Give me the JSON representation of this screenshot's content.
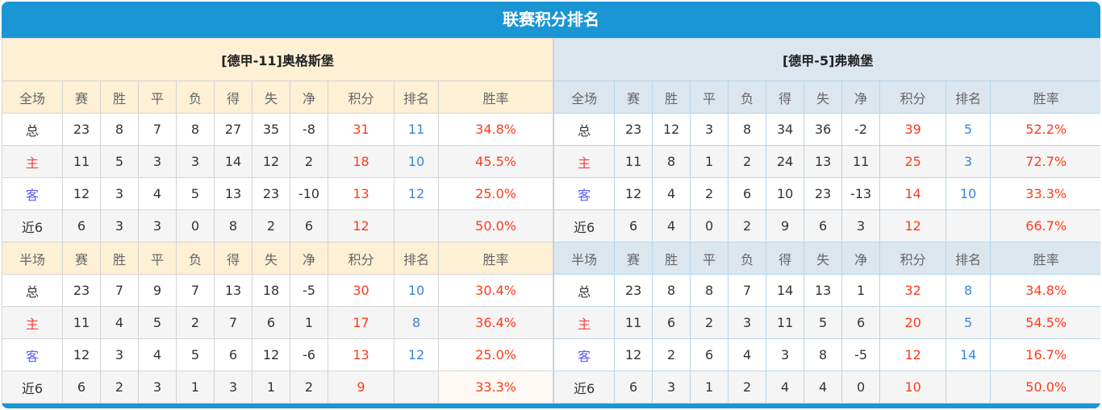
{
  "title": "联赛积分排名",
  "colors": {
    "header_bar": "#1a96d4",
    "left_header_bg": "#fdf0d5",
    "right_header_bg": "#dce6ef",
    "points": "#ff3a1a",
    "rank": "#3a86d6",
    "home": "#ff3a3a",
    "away": "#5a5aff"
  },
  "teams": [
    {
      "name": "[德甲-11]奥格斯堡",
      "full": {
        "headers": [
          "全场",
          "赛",
          "胜",
          "平",
          "负",
          "得",
          "失",
          "净",
          "积分",
          "排名",
          "胜率"
        ],
        "rows": [
          [
            "总",
            "23",
            "8",
            "7",
            "8",
            "27",
            "35",
            "-8",
            "31",
            "11",
            "34.8%"
          ],
          [
            "主",
            "11",
            "5",
            "3",
            "3",
            "14",
            "12",
            "2",
            "18",
            "10",
            "45.5%"
          ],
          [
            "客",
            "12",
            "3",
            "4",
            "5",
            "13",
            "23",
            "-10",
            "13",
            "12",
            "25.0%"
          ],
          [
            "近6",
            "6",
            "3",
            "3",
            "0",
            "8",
            "2",
            "6",
            "12",
            "",
            "50.0%"
          ]
        ]
      },
      "half": {
        "headers": [
          "半场",
          "赛",
          "胜",
          "平",
          "负",
          "得",
          "失",
          "净",
          "积分",
          "排名",
          "胜率"
        ],
        "rows": [
          [
            "总",
            "23",
            "7",
            "9",
            "7",
            "13",
            "18",
            "-5",
            "30",
            "10",
            "30.4%"
          ],
          [
            "主",
            "11",
            "4",
            "5",
            "2",
            "7",
            "6",
            "1",
            "17",
            "8",
            "36.4%"
          ],
          [
            "客",
            "12",
            "3",
            "4",
            "5",
            "6",
            "12",
            "-6",
            "13",
            "12",
            "25.0%"
          ],
          [
            "近6",
            "6",
            "2",
            "3",
            "1",
            "3",
            "1",
            "2",
            "9",
            "",
            "33.3%"
          ]
        ]
      }
    },
    {
      "name": "[德甲-5]弗赖堡",
      "full": {
        "headers": [
          "全场",
          "赛",
          "胜",
          "平",
          "负",
          "得",
          "失",
          "净",
          "积分",
          "排名",
          "胜率"
        ],
        "rows": [
          [
            "总",
            "23",
            "12",
            "3",
            "8",
            "34",
            "36",
            "-2",
            "39",
            "5",
            "52.2%"
          ],
          [
            "主",
            "11",
            "8",
            "1",
            "2",
            "24",
            "13",
            "11",
            "25",
            "3",
            "72.7%"
          ],
          [
            "客",
            "12",
            "4",
            "2",
            "6",
            "10",
            "23",
            "-13",
            "14",
            "10",
            "33.3%"
          ],
          [
            "近6",
            "6",
            "4",
            "0",
            "2",
            "9",
            "6",
            "3",
            "12",
            "",
            "66.7%"
          ]
        ]
      },
      "half": {
        "headers": [
          "半场",
          "赛",
          "胜",
          "平",
          "负",
          "得",
          "失",
          "净",
          "积分",
          "排名",
          "胜率"
        ],
        "rows": [
          [
            "总",
            "23",
            "8",
            "8",
            "7",
            "14",
            "13",
            "1",
            "32",
            "8",
            "34.8%"
          ],
          [
            "主",
            "11",
            "6",
            "2",
            "3",
            "11",
            "5",
            "6",
            "20",
            "5",
            "54.5%"
          ],
          [
            "客",
            "12",
            "2",
            "6",
            "4",
            "3",
            "8",
            "-5",
            "12",
            "14",
            "16.7%"
          ],
          [
            "近6",
            "6",
            "3",
            "1",
            "2",
            "4",
            "4",
            "0",
            "10",
            "",
            "50.0%"
          ]
        ]
      }
    }
  ]
}
